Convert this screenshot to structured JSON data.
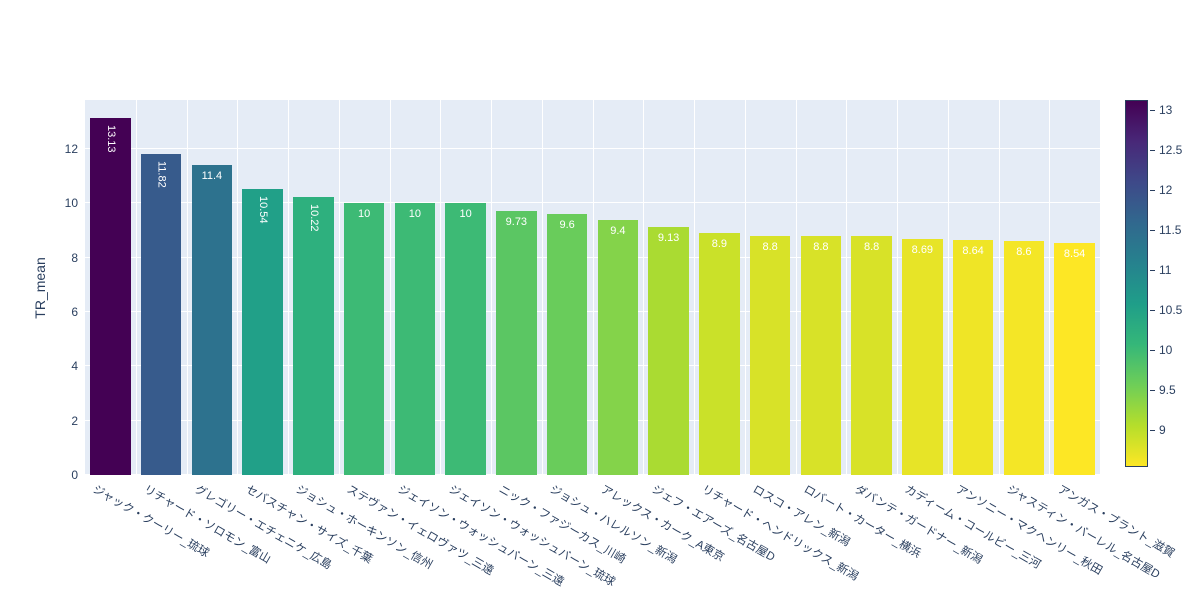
{
  "chart_data": {
    "type": "bar",
    "title": "",
    "xlabel": "",
    "ylabel": "TR_mean",
    "ylim": [
      0,
      13.8
    ],
    "yticks": [
      0,
      2,
      4,
      6,
      8,
      10,
      12
    ],
    "grid": true,
    "legend": false,
    "categories": [
      "ジャック・クーリー_琉球",
      "リチャード・ソロモン_富山",
      "グレゴリー・エチェニケ_広島",
      "セバスチャン・サイズ_千葉",
      "ジョシュ・ホーキンソン_信州",
      "ステヴァン・イェロヴァツ_三遠",
      "ジェイソン・ウォッシュバーン_三遠",
      "ジェイソン・ウォッシュバーン_琉球",
      "ニック・ファジーカス_川崎",
      "ジョシュ・ハレルソン_新潟",
      "アレックス・カーク_A東京",
      "ジェフ・エアーズ_名古屋D",
      "リチャード・ヘンドリックス_新潟",
      "ロスコ・アレン_新潟",
      "ロバート・カーター_横浜",
      "ダバンテ・ガードナー_新潟",
      "カディーム・コールビー_三河",
      "アンソニー・マクヘンリー_秋田",
      "ジャスティン・バーレル_名古屋D",
      "アンガス・ブラント_滋賀"
    ],
    "values": [
      13.13,
      11.82,
      11.4,
      10.54,
      10.22,
      10,
      10,
      10,
      9.73,
      9.6,
      9.4,
      9.13,
      8.9,
      8.8,
      8.8,
      8.8,
      8.69,
      8.64,
      8.6,
      8.54
    ],
    "bar_labels": [
      "13.13",
      "11.82",
      "11.4",
      "10.54",
      "10.22",
      "10",
      "10",
      "10",
      "9.73",
      "9.6",
      "9.4",
      "9.13",
      "8.9",
      "8.8",
      "8.8",
      "8.8",
      "8.69",
      "8.64",
      "8.6",
      "8.54"
    ],
    "bar_colors": [
      "#440154",
      "#375b8c",
      "#2d728e",
      "#21a088",
      "#2eb07e",
      "#3dba75",
      "#3dba75",
      "#3dba75",
      "#5bc663",
      "#69cc5b",
      "#84d34a",
      "#aadb32",
      "#cae129",
      "#d8e228",
      "#d8e228",
      "#d8e228",
      "#e7e427",
      "#efe526",
      "#f4e626",
      "#fde725"
    ],
    "colorbar": {
      "min": 8.54,
      "max": 13.13,
      "ticks": [
        "13",
        "12.5",
        "12",
        "11.5",
        "11",
        "10.5",
        "10",
        "9.5",
        "9"
      ],
      "tick_values": [
        13,
        12.5,
        12,
        11.5,
        11,
        10.5,
        10,
        9.5,
        9
      ],
      "gradient_top_to_bottom": [
        "#440154",
        "#482878",
        "#3e4989",
        "#31688e",
        "#26828e",
        "#1f9e89",
        "#35b779",
        "#6ece58",
        "#b5de2b",
        "#fde725"
      ]
    },
    "colors": {
      "paper_bg": "#ffffff",
      "plot_bg": "#e5ecf6",
      "grid": "#ffffff",
      "text": "#2a3f5f",
      "bar_value_text": "#ffffff"
    }
  }
}
